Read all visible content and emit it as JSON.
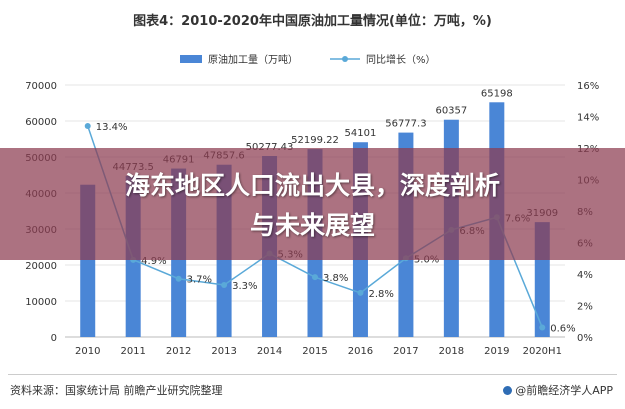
{
  "title": "图表4：2010-2020年中国原油加工量情况(单位：万吨，%)",
  "banner": {
    "line1": "海东地区人口流出大县，深度剖析",
    "line2": "与未来展望"
  },
  "footer": {
    "source": "资料来源：国家统计局 前瞻产业研究院整理",
    "brand": "@前瞻经济学人APP"
  },
  "colors": {
    "bar": "#4a86d6",
    "line": "#5aa9d8",
    "text": "#333333",
    "grid": "#e6e6e6"
  },
  "chart_data": {
    "type": "bar+line",
    "categories": [
      "2010",
      "2011",
      "2012",
      "2013",
      "2014",
      "2015",
      "2016",
      "2017",
      "2018",
      "2019",
      "2020H1"
    ],
    "series": [
      {
        "name": "原油加工量（万吨）",
        "type": "bar",
        "axis": "left",
        "values": [
          42300,
          44773.5,
          46791,
          47857.6,
          50277.43,
          52199.22,
          54101,
          56777.3,
          60357,
          65198,
          31909
        ],
        "labels": [
          "",
          "44773.5",
          "46791",
          "47857.6",
          "50277.43",
          "52199.22",
          "54101",
          "56777.3",
          "60357",
          "65198",
          "31909"
        ]
      },
      {
        "name": "同比增长（%）",
        "type": "line",
        "axis": "right",
        "values": [
          13.4,
          4.9,
          3.7,
          3.3,
          5.3,
          3.8,
          2.8,
          5.0,
          6.8,
          7.6,
          0.6
        ],
        "labels": [
          "13.4%",
          "4.9%",
          "3.7%",
          "3.3%",
          "5.3%",
          "3.8%",
          "2.8%",
          "5.0%",
          "6.8%",
          "7.6%",
          "0.6%"
        ]
      }
    ],
    "y_left": {
      "min": 0,
      "max": 70000,
      "ticks": [
        "0",
        "10000",
        "20000",
        "30000",
        "40000",
        "50000",
        "60000",
        "70000"
      ]
    },
    "y_right": {
      "min": 0,
      "max": 16,
      "ticks": [
        "0%",
        "2%",
        "4%",
        "6%",
        "8%",
        "10%",
        "12%",
        "14%",
        "16%"
      ]
    },
    "grid": true,
    "legend": "top-center"
  }
}
